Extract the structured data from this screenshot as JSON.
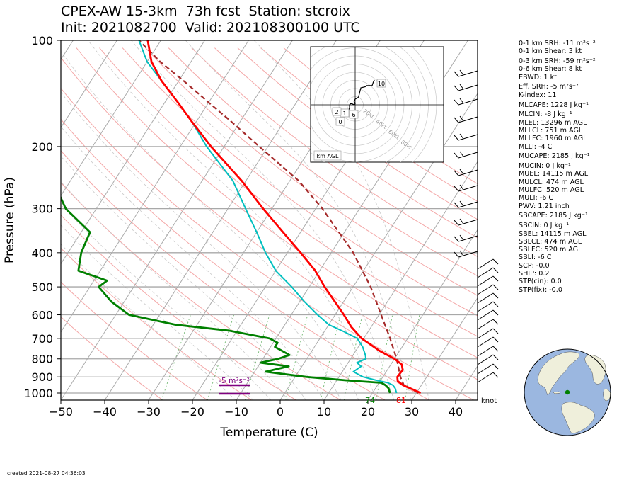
{
  "header": {
    "title_line1": "CPEX-AW 15-3km  73h fcst  Station: stcroix",
    "title_line2": "Init: 2021082700  Valid: 202108300100 UTC"
  },
  "footer": {
    "created": "created 2021-08-27 04:36:03"
  },
  "colors": {
    "temperature": "#ff0000",
    "dewpoint": "#008000",
    "wetbulb": "#00bfbf",
    "parcel": "#a52a2a",
    "isotherm": "#aaaaaa",
    "dry_adiabat": "#f4a7a7",
    "moist_adiabat": "#c8c8c8",
    "mixing_ratio": "#7fbf7f",
    "srh_label": "#800080",
    "land": "#efefdb",
    "ocean": "#9bb7e0"
  },
  "chart_data": {
    "type": "skew-t",
    "xlabel": "Temperature (C)",
    "ylabel": "Pressure (hPa)",
    "xlim": [
      -50,
      45
    ],
    "ylim_hpa": [
      1050,
      100
    ],
    "y_scale": "log",
    "x_ticks": [
      "−50",
      "−40",
      "−30",
      "−20",
      "−10",
      "0",
      "10",
      "20",
      "30",
      "40"
    ],
    "y_ticks": [
      "100",
      "200",
      "300",
      "400",
      "500",
      "600",
      "700",
      "800",
      "900",
      "1000"
    ],
    "isobars": [
      200,
      300,
      400,
      500,
      600,
      700,
      800,
      900,
      1000
    ],
    "grid": true,
    "temperature_profile": [
      [
        1000,
        31.0
      ],
      [
        980,
        29.0
      ],
      [
        950,
        25.8
      ],
      [
        925,
        24.0
      ],
      [
        900,
        23.3
      ],
      [
        860,
        23.5
      ],
      [
        830,
        22.5
      ],
      [
        800,
        20.0
      ],
      [
        760,
        15.5
      ],
      [
        700,
        9.5
      ],
      [
        650,
        5.5
      ],
      [
        600,
        2.0
      ],
      [
        560,
        -1.2
      ],
      [
        500,
        -6.5
      ],
      [
        450,
        -11.0
      ],
      [
        400,
        -17.0
      ],
      [
        350,
        -24.0
      ],
      [
        300,
        -32.0
      ],
      [
        250,
        -41.0
      ],
      [
        200,
        -53.0
      ],
      [
        170,
        -61.0
      ],
      [
        150,
        -67.0
      ],
      [
        130,
        -74.0
      ],
      [
        115,
        -79.0
      ],
      [
        100,
        -83.0
      ]
    ],
    "dewpoint_profile": [
      [
        1000,
        24.0
      ],
      [
        970,
        23.0
      ],
      [
        950,
        21.8
      ],
      [
        935,
        20.5
      ],
      [
        920,
        12.0
      ],
      [
        900,
        2.5
      ],
      [
        870,
        -7.5
      ],
      [
        840,
        -3.0
      ],
      [
        820,
        -10.0
      ],
      [
        800,
        -6.5
      ],
      [
        780,
        -4.5
      ],
      [
        740,
        -9.0
      ],
      [
        720,
        -9.0
      ],
      [
        700,
        -11.5
      ],
      [
        665,
        -22.0
      ],
      [
        640,
        -35.0
      ],
      [
        600,
        -47.0
      ],
      [
        550,
        -53.0
      ],
      [
        500,
        -58.0
      ],
      [
        480,
        -57.0
      ],
      [
        450,
        -65.0
      ],
      [
        400,
        -67.0
      ],
      [
        350,
        -68.0
      ],
      [
        300,
        -77.0
      ],
      [
        250,
        -84.0
      ],
      [
        200,
        -97.0
      ],
      [
        170,
        -106.0
      ],
      [
        150,
        -110.0
      ],
      [
        130,
        -111.0
      ],
      [
        115,
        -110.0
      ],
      [
        100,
        -109.0
      ]
    ],
    "wetbulb_profile": [
      [
        1000,
        25.5
      ],
      [
        970,
        24.5
      ],
      [
        950,
        23.5
      ],
      [
        935,
        22.0
      ],
      [
        920,
        19.0
      ],
      [
        900,
        15.5
      ],
      [
        870,
        12.5
      ],
      [
        840,
        13.5
      ],
      [
        820,
        12.0
      ],
      [
        800,
        13.5
      ],
      [
        780,
        12.8
      ],
      [
        740,
        11.0
      ],
      [
        700,
        8.5
      ],
      [
        670,
        4.5
      ],
      [
        640,
        0.0
      ],
      [
        600,
        -4.0
      ],
      [
        550,
        -9.0
      ],
      [
        500,
        -14.0
      ],
      [
        450,
        -20.0
      ],
      [
        400,
        -25.0
      ],
      [
        350,
        -30.0
      ],
      [
        300,
        -36.0
      ],
      [
        250,
        -43.0
      ],
      [
        200,
        -54.0
      ],
      [
        170,
        -61.0
      ],
      [
        150,
        -67.0
      ],
      [
        130,
        -74.0
      ],
      [
        115,
        -80.0
      ],
      [
        100,
        -85.0
      ]
    ],
    "parcel_profile": [
      [
        1000,
        30.5
      ],
      [
        970,
        28.0
      ],
      [
        950,
        26.0
      ],
      [
        900,
        24.0
      ],
      [
        850,
        22.3
      ],
      [
        800,
        20.5
      ],
      [
        700,
        16.0
      ],
      [
        600,
        10.5
      ],
      [
        500,
        4.0
      ],
      [
        400,
        -5.0
      ],
      [
        300,
        -18.5
      ],
      [
        250,
        -28.0
      ],
      [
        200,
        -42.0
      ],
      [
        170,
        -52.0
      ],
      [
        150,
        -60.0
      ],
      [
        130,
        -69.0
      ],
      [
        115,
        -77.0
      ],
      [
        100,
        -85.0
      ]
    ],
    "surface_labels": [
      {
        "name": "dewpoint_f",
        "text": "74"
      },
      {
        "name": "temperature_f",
        "text": "81"
      }
    ],
    "srh_annotation": "-5 m²s⁻²",
    "wind_units": "knot",
    "hodograph": {
      "label": "km AGL",
      "ring_labels": [
        "20kt",
        "40kt",
        "60kt",
        "80kt"
      ],
      "height_labels": [
        "0",
        "1",
        "2",
        "6",
        "10"
      ],
      "trace_kt": [
        [
          -6,
          -5
        ],
        [
          -5,
          -3
        ],
        [
          -5,
          0
        ],
        [
          -4,
          1
        ],
        [
          -3,
          1
        ],
        [
          -1,
          0
        ],
        [
          0,
          1
        ],
        [
          -1,
          3
        ],
        [
          0,
          5
        ],
        [
          2,
          6
        ],
        [
          3,
          7
        ],
        [
          4,
          11
        ],
        [
          5,
          15
        ],
        [
          9,
          16
        ],
        [
          10,
          17
        ],
        [
          15,
          17
        ],
        [
          16,
          20
        ],
        [
          17,
          22
        ]
      ]
    }
  },
  "parameters": [
    "0-1 km SRH: -11 m²s⁻²",
    "0-1 km Shear: 3 kt",
    "0-3 km SRH: -59 m²s⁻²",
    "0-6 km Shear: 8 kt",
    "EBWD: 1 kt",
    "Eff. SRH: -5 m²s⁻²",
    "K-index: 11",
    "MLCAPE: 1228 J kg⁻¹",
    "MLCIN: -8 J kg⁻¹",
    "MLEL: 13296 m AGL",
    "MLLCL: 751 m AGL",
    "MLLFC: 1960 m AGL",
    "MLLI: -4 C",
    "MUCAPE: 2185 J kg⁻¹",
    "MUCIN: 0 J kg⁻¹",
    "MUEL: 14115 m AGL",
    "MULCL: 474 m AGL",
    "MULFC: 520 m AGL",
    "MULI: -6 C",
    "PWV: 1.21 inch",
    "SBCAPE: 2185 J kg⁻¹",
    "SBCIN: 0 J kg⁻¹",
    "SBEL: 14115 m AGL",
    "SBLCL: 474 m AGL",
    "SBLFC: 520 m AGL",
    "SBLI: -6 C",
    "SCP: -0.0",
    "SHIP: 0.2",
    "STP(cin): 0.0",
    "STP(fix): -0.0"
  ]
}
